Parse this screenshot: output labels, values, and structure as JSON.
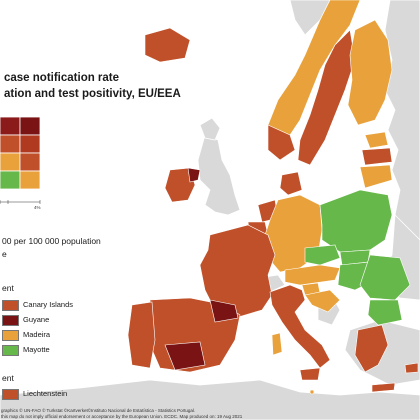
{
  "title": {
    "line1": "case notification rate",
    "line2": "ation and test positivity, EU/EEA"
  },
  "matrix": {
    "axis_tick": "4%",
    "rows": [
      [
        "#8b1a1a",
        "#7a1414"
      ],
      [
        "#c0502a",
        "#b03a1f"
      ],
      [
        "#e9a23b",
        "#c0502a"
      ],
      [
        "#66b84a",
        "#e9a23b"
      ]
    ]
  },
  "notes": {
    "rate_note": "00 per 100 000 population",
    "e_note": "e"
  },
  "legend_regions": {
    "header": "ent",
    "items": [
      {
        "label": "Canary Islands",
        "color": "#c0502a"
      },
      {
        "label": "Guyane",
        "color": "#7a1414"
      },
      {
        "label": "Madeira",
        "color": "#e9a23b"
      },
      {
        "label": "Mayotte",
        "color": "#66b84a"
      }
    ]
  },
  "legend_other": {
    "header": "ent",
    "items": [
      {
        "label": "Liechtenstein",
        "color": "#c0502a"
      }
    ]
  },
  "footer": {
    "line1": "graphics © UN-FAO © Turkstat ©Kartverket©Instituto Nacional de Estatística - Statistics Portugal.",
    "line2": "this map do not imply official endorsement or acceptance by the European Union. ECDC. Map produced on: 19 Aug 2021"
  },
  "colors": {
    "sea": "#ffffff",
    "non_eu": "#d9d9d9",
    "dark_red": "#7a1414",
    "red": "#c0502a",
    "orange": "#e9a23b",
    "green": "#66b84a",
    "border": "#ffffff"
  }
}
